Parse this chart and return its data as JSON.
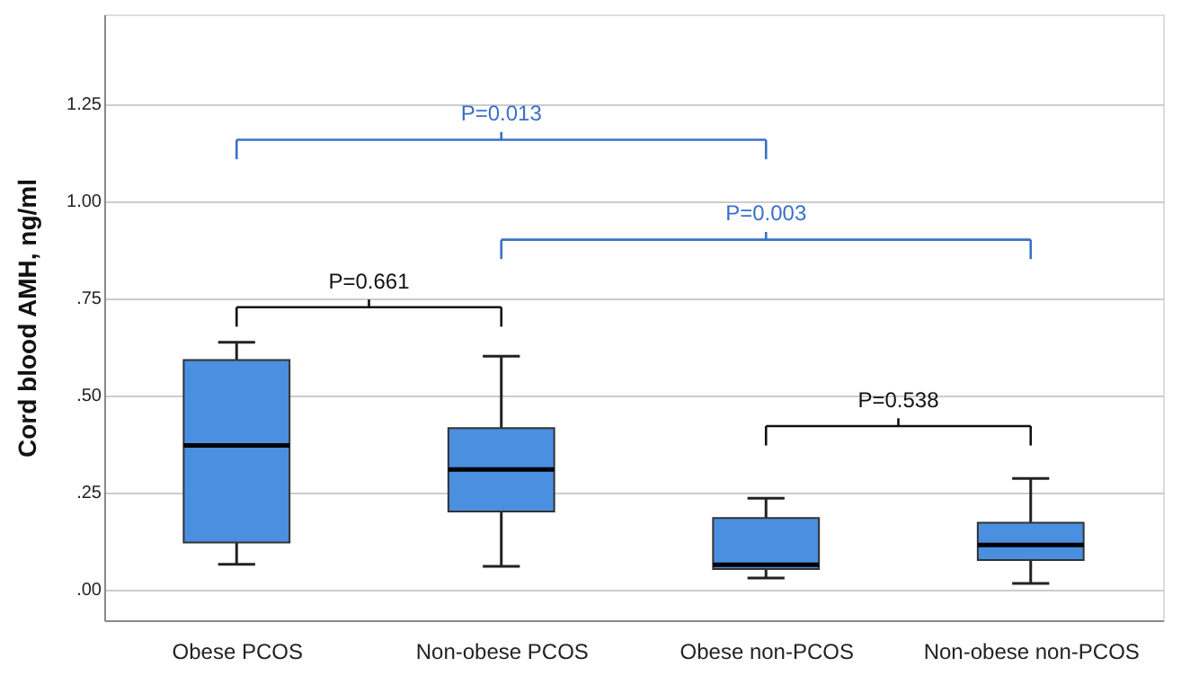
{
  "chart_data": {
    "type": "box",
    "ylabel": "Cord blood AMH, ng/ml",
    "categories": [
      "Obese PCOS",
      "Non-obese PCOS",
      "Obese non-PCOS",
      "Non-obese non-PCOS"
    ],
    "color": "#4a8fe0",
    "boxes": [
      {
        "low": 0.064,
        "q1": 0.12,
        "median": 0.37,
        "q3": 0.59,
        "high": 0.636
      },
      {
        "low": 0.059,
        "q1": 0.2,
        "median": 0.308,
        "q3": 0.415,
        "high": 0.6
      },
      {
        "low": 0.029,
        "q1": 0.052,
        "median": 0.063,
        "q3": 0.183,
        "high": 0.234
      },
      {
        "low": 0.015,
        "q1": 0.075,
        "median": 0.114,
        "q3": 0.171,
        "high": 0.285
      }
    ],
    "ylim": [
      -0.08,
      1.48
    ],
    "yticks": [
      {
        "value": 0,
        "label": ".00"
      },
      {
        "value": 0.25,
        "label": ".25"
      },
      {
        "value": 0.5,
        "label": ".50"
      },
      {
        "value": 0.75,
        "label": ".75"
      },
      {
        "value": 1,
        "label": "1.00"
      },
      {
        "value": 1.25,
        "label": "1.25"
      }
    ],
    "grid": "y",
    "annotations": [
      "P=0.013",
      "P=0.661",
      "P=0.003",
      "P=0.538"
    ]
  }
}
